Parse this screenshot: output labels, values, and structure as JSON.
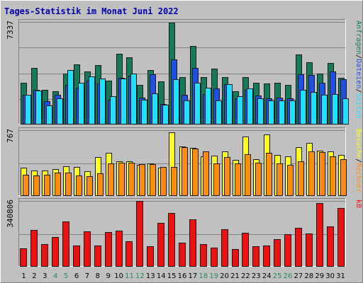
{
  "title": "Tages-Statistik im Monat Juni 2022",
  "colors": {
    "background": "#c0c0c0",
    "title": "#0000aa",
    "weekday_label": "#000000",
    "weekend_label": "#228b55",
    "anfragen": "#157a5a",
    "dateien": "#1e50e6",
    "seiten": "#22e0ff",
    "besuche": "#ffff22",
    "rechner": "#ff8c11",
    "kb": "#ee1111"
  },
  "chart_data": {
    "type": "bar",
    "title": "Tages-Statistik im Monat Juni 2022",
    "x": [
      1,
      2,
      3,
      4,
      5,
      6,
      7,
      8,
      9,
      10,
      11,
      12,
      13,
      14,
      15,
      16,
      17,
      18,
      19,
      20,
      21,
      22,
      23,
      24,
      25,
      26,
      27,
      28,
      29,
      30,
      31
    ],
    "weekend_days": [
      4,
      5,
      11,
      12,
      18,
      19,
      25,
      26
    ],
    "panels": [
      {
        "name": "requests",
        "ymax_label": "7337",
        "ymax": 7337,
        "right_labels": [
          {
            "text": "Anfragen",
            "color": "#157a5a"
          },
          {
            "text": "/",
            "color": "#000000"
          },
          {
            "text": "Dateien",
            "color": "#1e50e6"
          },
          {
            "text": "/",
            "color": "#000000"
          },
          {
            "text": "Seiten",
            "color": "#22e0ff"
          }
        ],
        "series": [
          {
            "name": "Anfragen",
            "color": "#157a5a",
            "values": [
              2990,
              4030,
              2480,
              2400,
              3660,
              4310,
              3790,
              4260,
              3150,
              5040,
              4810,
              2830,
              3920,
              3100,
              7300,
              3380,
              5630,
              3370,
              4000,
              3370,
              2360,
              3410,
              2990,
              2950,
              2990,
              2820,
              5000,
              4470,
              3640,
              4380,
              3350
            ]
          },
          {
            "name": "Dateien",
            "color": "#1e50e6",
            "values": [
              2100,
              2500,
              1650,
              2100,
              2840,
              2630,
              3130,
              2940,
              1770,
              3320,
              3500,
              1900,
              3600,
              1490,
              4660,
              2150,
              4050,
              2200,
              2600,
              2860,
              1880,
              2500,
              2060,
              1880,
              1910,
              1870,
              3570,
              3530,
              3000,
              3820,
              3230
            ]
          },
          {
            "name": "Seiten",
            "color": "#22e0ff",
            "values": [
              2100,
              2450,
              1350,
              1870,
              3900,
              3000,
              3420,
              3300,
              2000,
              3300,
              3640,
              1780,
              2250,
              1440,
              3230,
              1710,
              2990,
              2610,
              1740,
              2900,
              2000,
              2570,
              1850,
              1700,
              1730,
              1710,
              2490,
              2330,
              2100,
              2180,
              1880
            ]
          }
        ]
      },
      {
        "name": "visits",
        "ymax_label": "767",
        "ymax": 767,
        "right_labels": [
          {
            "text": "Besuche",
            "color": "#ffff22"
          },
          {
            "text": "/",
            "color": "#000000"
          },
          {
            "text": "Rechner",
            "color": "#ff8c11"
          }
        ],
        "series": [
          {
            "name": "Besuche",
            "color": "#ffff22",
            "values": [
              330,
              300,
              300,
              310,
              350,
              340,
              290,
              450,
              500,
              400,
              400,
              360,
              380,
              330,
              740,
              580,
              560,
              460,
              470,
              520,
              420,
              690,
              430,
              720,
              480,
              460,
              570,
              620,
              530,
              520,
              480
            ]
          },
          {
            "name": "Rechner",
            "color": "#ff8c11",
            "values": [
              250,
              240,
              250,
              270,
              270,
              240,
              230,
              260,
              380,
              390,
              390,
              370,
              370,
              340,
              340,
              570,
              550,
              520,
              380,
              450,
              380,
              490,
              390,
              500,
              380,
              360,
              400,
              520,
              510,
              460,
              430
            ]
          }
        ]
      },
      {
        "name": "kb",
        "ymax_label": "340806",
        "ymax": 340806,
        "right_labels": [
          {
            "text": "kB",
            "color": "#ee1111"
          }
        ],
        "series": [
          {
            "name": "kB",
            "color": "#ee1111",
            "values": [
              95000,
              192000,
              118000,
              154000,
              236000,
              110000,
              183000,
              111000,
              178000,
              188000,
              131000,
              340806,
              107000,
              226000,
              280000,
              125000,
              246000,
              118000,
              98000,
              193000,
              93000,
              176000,
              108000,
              110000,
              143000,
              168000,
              200000,
              172000,
              330000,
              208000,
              305000
            ]
          }
        ]
      }
    ]
  }
}
